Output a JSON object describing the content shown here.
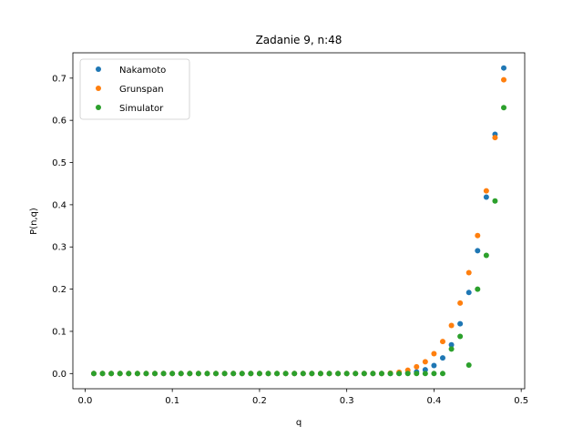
{
  "chart_data": {
    "type": "scatter",
    "title": "Zadanie 9, n:48",
    "xlabel": "q",
    "ylabel": "P(n,q)",
    "xlim": [
      -0.014,
      0.504
    ],
    "ylim": [
      -0.036,
      0.76
    ],
    "xticks": [
      0.0,
      0.1,
      0.2,
      0.3,
      0.4,
      0.5
    ],
    "xtick_labels": [
      "0.0",
      "0.1",
      "0.2",
      "0.3",
      "0.4",
      "0.5"
    ],
    "yticks": [
      0.0,
      0.1,
      0.2,
      0.3,
      0.4,
      0.5,
      0.6,
      0.7
    ],
    "ytick_labels": [
      "0.0",
      "0.1",
      "0.2",
      "0.3",
      "0.4",
      "0.5",
      "0.6",
      "0.7"
    ],
    "grid": false,
    "legend_position": "top-left",
    "x": [
      0.01,
      0.02,
      0.03,
      0.04,
      0.05,
      0.06,
      0.07,
      0.08,
      0.09,
      0.1,
      0.11,
      0.12,
      0.13,
      0.14,
      0.15,
      0.16,
      0.17,
      0.18,
      0.19,
      0.2,
      0.21,
      0.22,
      0.23,
      0.24,
      0.25,
      0.26,
      0.27,
      0.28,
      0.29,
      0.3,
      0.31,
      0.32,
      0.33,
      0.34,
      0.35,
      0.36,
      0.37,
      0.38,
      0.39,
      0.4,
      0.41,
      0.42,
      0.43,
      0.44,
      0.45,
      0.46,
      0.47,
      0.48
    ],
    "series": [
      {
        "name": "Nakamoto",
        "color": "#1f77b4",
        "values": [
          0,
          0,
          0,
          0,
          0,
          0,
          0,
          0,
          0,
          0,
          0,
          0,
          0,
          0,
          0,
          0,
          0,
          0,
          0,
          0,
          0,
          0,
          0,
          0,
          0,
          0,
          0,
          0,
          0,
          0,
          0,
          0,
          0,
          0,
          0,
          0.0005,
          0.0015,
          0.004,
          0.009,
          0.019,
          0.037,
          0.068,
          0.118,
          0.192,
          0.291,
          0.418,
          0.567,
          0.724
        ]
      },
      {
        "name": "Grunspan",
        "color": "#ff7f0e",
        "values": [
          0,
          0,
          0,
          0,
          0,
          0,
          0,
          0,
          0,
          0,
          0,
          0,
          0,
          0,
          0,
          0,
          0,
          0,
          0,
          0,
          0,
          0,
          0,
          0,
          0,
          0,
          0,
          0,
          0,
          0,
          0,
          0,
          0,
          0,
          0.001,
          0.003,
          0.008,
          0.016,
          0.028,
          0.047,
          0.076,
          0.114,
          0.167,
          0.239,
          0.327,
          0.433,
          0.559,
          0.696
        ]
      },
      {
        "name": "Simulator",
        "color": "#2ca02c",
        "values": [
          0,
          0,
          0,
          0,
          0,
          0,
          0,
          0,
          0,
          0,
          0,
          0,
          0,
          0,
          0,
          0,
          0,
          0,
          0,
          0,
          0,
          0,
          0,
          0,
          0,
          0,
          0,
          0,
          0,
          0,
          0,
          0,
          0,
          0,
          0,
          0,
          0,
          0,
          0,
          0,
          0,
          0.058,
          0.088,
          0.02,
          0.2,
          0.28,
          0.409,
          0.63
        ]
      }
    ]
  }
}
